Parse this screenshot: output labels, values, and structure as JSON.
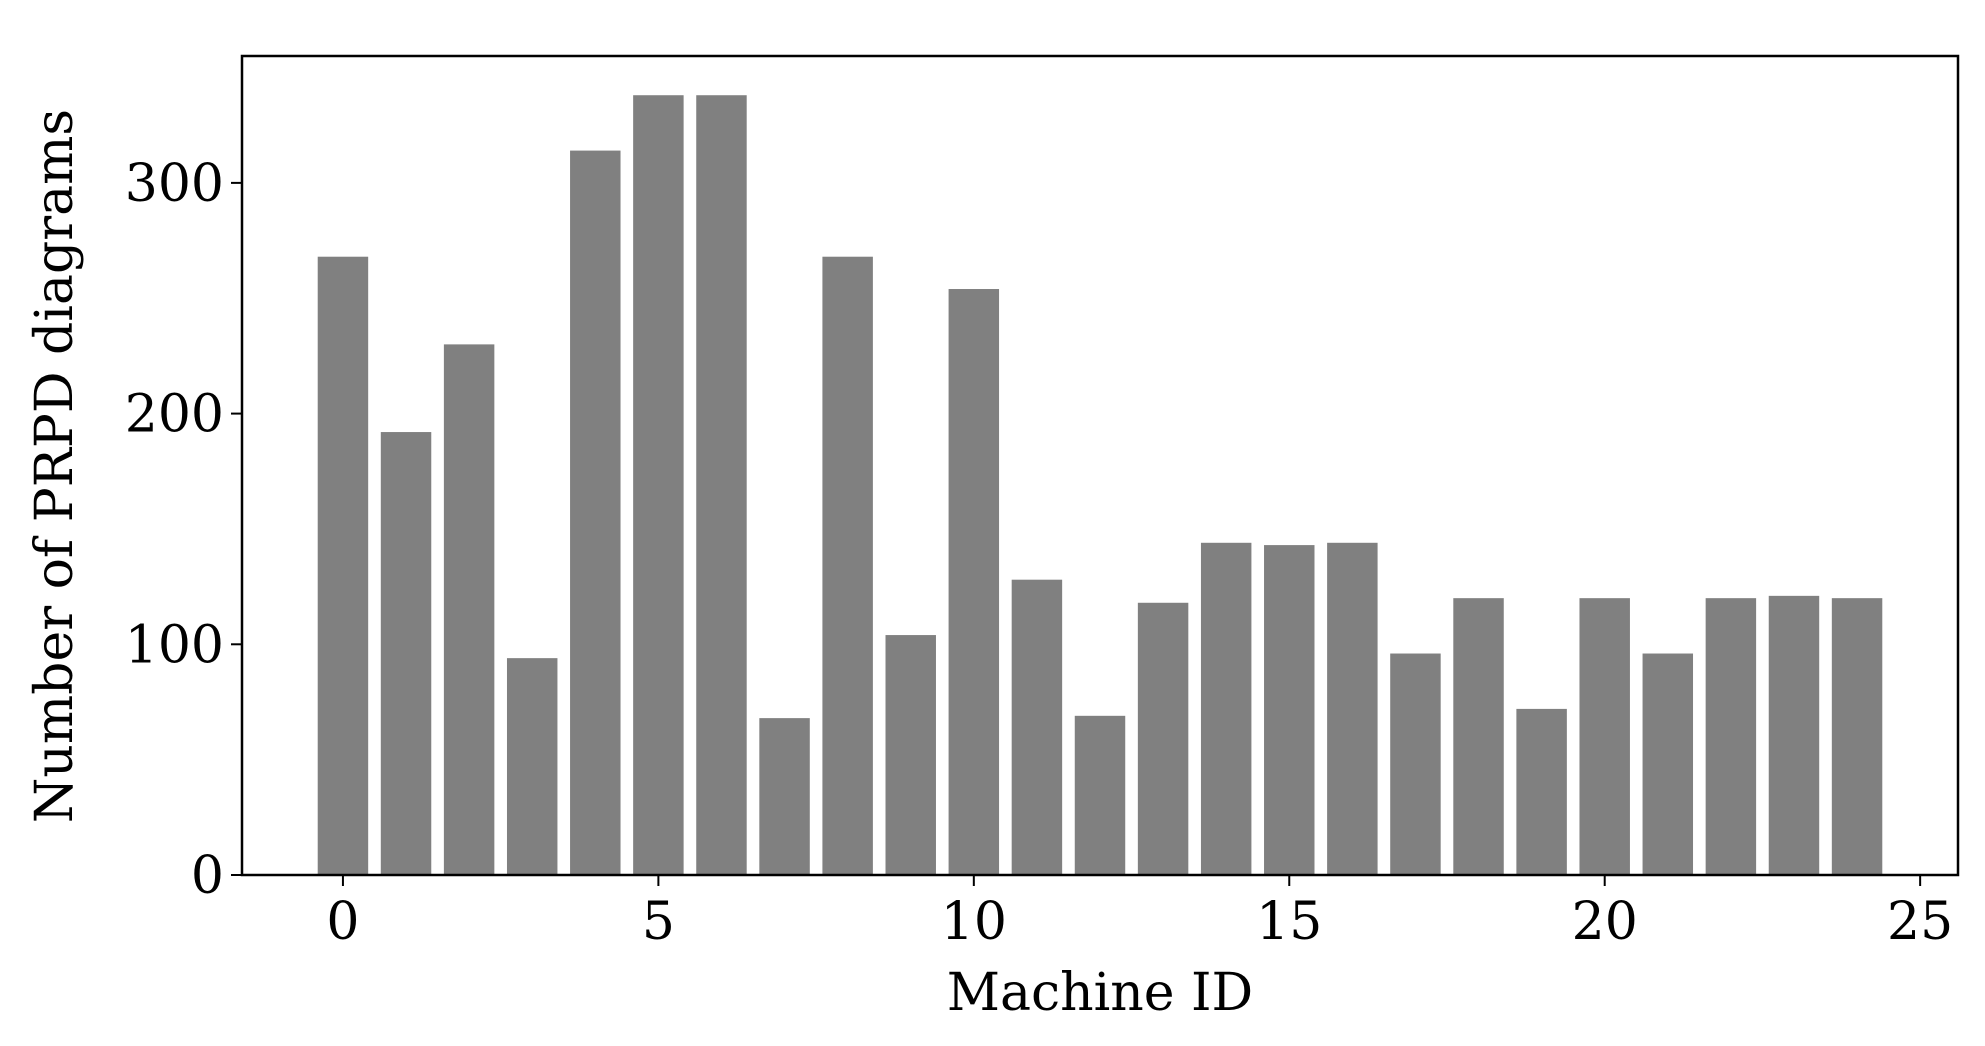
{
  "chart_data": {
    "type": "bar",
    "xlabel": "Machine ID",
    "ylabel": "Number of PRPD diagrams",
    "x": [
      0,
      1,
      2,
      3,
      4,
      5,
      6,
      7,
      8,
      9,
      10,
      11,
      12,
      13,
      14,
      15,
      16,
      17,
      18,
      19,
      20,
      21,
      22,
      23,
      24
    ],
    "values": [
      268,
      192,
      230,
      94,
      314,
      338,
      338,
      68,
      268,
      104,
      254,
      128,
      69,
      118,
      144,
      143,
      144,
      96,
      120,
      72,
      120,
      96,
      120,
      121,
      120
    ],
    "color": "#808080",
    "xlim": [
      -1.6,
      25.6
    ],
    "xticks": [
      0,
      5,
      10,
      15,
      20,
      25
    ],
    "ylim": [
      0,
      355
    ],
    "yticks": [
      0,
      100,
      200,
      300
    ]
  }
}
